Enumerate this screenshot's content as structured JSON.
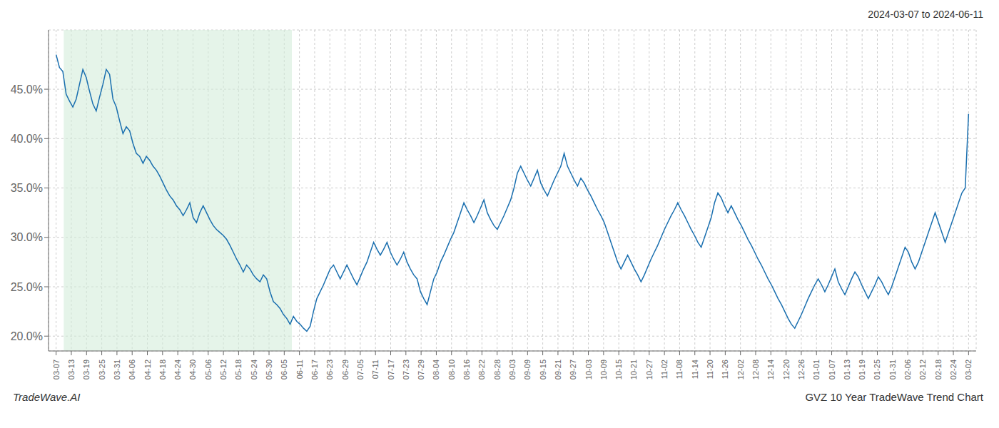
{
  "chart_data": {
    "type": "line",
    "title": "2024-03-07 to 2024-06-11",
    "annotations": [
      "TradeWave.AI",
      "GVZ 10 Year TradeWave Trend Chart"
    ],
    "color": "#1a6faf",
    "grid": true,
    "highlight": {
      "from": 0.5,
      "to": 15.5,
      "color": "#d4edda"
    },
    "xlim": [
      -0.5,
      60.5
    ],
    "xticks": [
      {
        "value": 0,
        "label": "03-07"
      },
      {
        "value": 1,
        "label": "03-13"
      },
      {
        "value": 2,
        "label": "03-19"
      },
      {
        "value": 3,
        "label": "03-25"
      },
      {
        "value": 4,
        "label": "03-31"
      },
      {
        "value": 5,
        "label": "04-06"
      },
      {
        "value": 6,
        "label": "04-12"
      },
      {
        "value": 7,
        "label": "04-18"
      },
      {
        "value": 8,
        "label": "04-24"
      },
      {
        "value": 9,
        "label": "04-30"
      },
      {
        "value": 10,
        "label": "05-06"
      },
      {
        "value": 11,
        "label": "05-12"
      },
      {
        "value": 12,
        "label": "05-18"
      },
      {
        "value": 13,
        "label": "05-24"
      },
      {
        "value": 14,
        "label": "05-30"
      },
      {
        "value": 15,
        "label": "06-05"
      },
      {
        "value": 16,
        "label": "06-11"
      },
      {
        "value": 17,
        "label": "06-17"
      },
      {
        "value": 18,
        "label": "06-23"
      },
      {
        "value": 19,
        "label": "06-29"
      },
      {
        "value": 20,
        "label": "07-05"
      },
      {
        "value": 21,
        "label": "07-11"
      },
      {
        "value": 22,
        "label": "07-17"
      },
      {
        "value": 23,
        "label": "07-23"
      },
      {
        "value": 24,
        "label": "07-29"
      },
      {
        "value": 25,
        "label": "08-04"
      },
      {
        "value": 26,
        "label": "08-10"
      },
      {
        "value": 27,
        "label": "08-16"
      },
      {
        "value": 28,
        "label": "08-22"
      },
      {
        "value": 29,
        "label": "08-28"
      },
      {
        "value": 30,
        "label": "09-03"
      },
      {
        "value": 31,
        "label": "09-09"
      },
      {
        "value": 32,
        "label": "09-15"
      },
      {
        "value": 33,
        "label": "09-21"
      },
      {
        "value": 34,
        "label": "09-27"
      },
      {
        "value": 35,
        "label": "10-03"
      },
      {
        "value": 36,
        "label": "10-09"
      },
      {
        "value": 37,
        "label": "10-15"
      },
      {
        "value": 38,
        "label": "10-21"
      },
      {
        "value": 39,
        "label": "10-27"
      },
      {
        "value": 40,
        "label": "11-02"
      },
      {
        "value": 41,
        "label": "11-08"
      },
      {
        "value": 42,
        "label": "11-14"
      },
      {
        "value": 43,
        "label": "11-20"
      },
      {
        "value": 44,
        "label": "11-26"
      },
      {
        "value": 45,
        "label": "12-02"
      },
      {
        "value": 46,
        "label": "12-08"
      },
      {
        "value": 47,
        "label": "12-14"
      },
      {
        "value": 48,
        "label": "12-20"
      },
      {
        "value": 49,
        "label": "12-26"
      },
      {
        "value": 50,
        "label": "01-01"
      },
      {
        "value": 51,
        "label": "01-07"
      },
      {
        "value": 52,
        "label": "01-13"
      },
      {
        "value": 53,
        "label": "01-19"
      },
      {
        "value": 54,
        "label": "01-25"
      },
      {
        "value": 55,
        "label": "01-31"
      },
      {
        "value": 56,
        "label": "02-06"
      },
      {
        "value": 57,
        "label": "02-12"
      },
      {
        "value": 58,
        "label": "02-18"
      },
      {
        "value": 59,
        "label": "02-24"
      },
      {
        "value": 60,
        "label": "03-02"
      }
    ],
    "ylim": [
      18.5,
      51.0
    ],
    "yticks": [
      {
        "value": 20.0,
        "label": "20.0%"
      },
      {
        "value": 25.0,
        "label": "25.0%"
      },
      {
        "value": 30.0,
        "label": "30.0%"
      },
      {
        "value": 35.0,
        "label": "35.0%"
      },
      {
        "value": 40.0,
        "label": "40.0%"
      },
      {
        "value": 45.0,
        "label": "45.0%"
      }
    ],
    "values": [
      48.5,
      47.2,
      46.8,
      44.5,
      43.8,
      43.2,
      44.0,
      45.5,
      47.0,
      46.2,
      44.8,
      43.5,
      42.8,
      44.2,
      45.5,
      47.0,
      46.5,
      44.0,
      43.2,
      41.8,
      40.5,
      41.2,
      40.8,
      39.5,
      38.5,
      38.2,
      37.5,
      38.2,
      37.8,
      37.2,
      36.8,
      36.2,
      35.5,
      34.8,
      34.2,
      33.8,
      33.2,
      32.8,
      32.2,
      32.8,
      33.5,
      32.0,
      31.5,
      32.5,
      33.2,
      32.5,
      31.8,
      31.2,
      30.8,
      30.5,
      30.2,
      29.8,
      29.2,
      28.5,
      27.8,
      27.2,
      26.5,
      27.2,
      26.8,
      26.2,
      25.8,
      25.5,
      26.2,
      25.8,
      24.5,
      23.5,
      23.2,
      22.8,
      22.2,
      21.8,
      21.2,
      22.0,
      21.5,
      21.2,
      20.8,
      20.5,
      21.0,
      22.5,
      23.8,
      24.5,
      25.2,
      26.0,
      26.8,
      27.2,
      26.5,
      25.8,
      26.5,
      27.2,
      26.5,
      25.8,
      25.2,
      26.0,
      26.8,
      27.5,
      28.5,
      29.5,
      28.8,
      28.2,
      28.8,
      29.5,
      28.5,
      27.8,
      27.2,
      27.8,
      28.5,
      27.5,
      26.8,
      26.2,
      25.8,
      24.5,
      23.8,
      23.2,
      24.5,
      25.8,
      26.5,
      27.5,
      28.2,
      29.0,
      29.8,
      30.5,
      31.5,
      32.5,
      33.5,
      32.8,
      32.2,
      31.5,
      32.2,
      33.0,
      33.8,
      32.5,
      31.8,
      31.2,
      30.8,
      31.5,
      32.2,
      33.0,
      33.8,
      35.0,
      36.5,
      37.2,
      36.5,
      35.8,
      35.2,
      36.0,
      36.8,
      35.5,
      34.8,
      34.2,
      35.0,
      35.8,
      36.5,
      37.2,
      38.5,
      37.2,
      36.5,
      35.8,
      35.2,
      36.0,
      35.5,
      34.8,
      34.2,
      33.5,
      32.8,
      32.2,
      31.5,
      30.5,
      29.5,
      28.5,
      27.5,
      26.8,
      27.5,
      28.2,
      27.5,
      26.8,
      26.2,
      25.5,
      26.2,
      27.0,
      27.8,
      28.5,
      29.2,
      30.0,
      30.8,
      31.5,
      32.2,
      32.8,
      33.5,
      32.8,
      32.2,
      31.5,
      30.8,
      30.2,
      29.5,
      29.0,
      30.0,
      31.0,
      32.0,
      33.5,
      34.5,
      34.0,
      33.2,
      32.5,
      33.2,
      32.5,
      31.8,
      31.2,
      30.5,
      29.8,
      29.2,
      28.5,
      27.8,
      27.2,
      26.5,
      25.8,
      25.2,
      24.5,
      23.8,
      23.2,
      22.5,
      21.8,
      21.2,
      20.8,
      21.5,
      22.2,
      23.0,
      23.8,
      24.5,
      25.2,
      25.8,
      25.2,
      24.5,
      25.2,
      26.0,
      26.8,
      25.5,
      24.8,
      24.2,
      25.0,
      25.8,
      26.5,
      26.0,
      25.2,
      24.5,
      23.8,
      24.5,
      25.2,
      26.0,
      25.5,
      24.8,
      24.2,
      25.0,
      26.0,
      27.0,
      28.0,
      29.0,
      28.5,
      27.5,
      26.8,
      27.5,
      28.5,
      29.5,
      30.5,
      31.5,
      32.5,
      31.5,
      30.5,
      29.5,
      30.5,
      31.5,
      32.5,
      33.5,
      34.5,
      35.0,
      42.5
    ]
  }
}
